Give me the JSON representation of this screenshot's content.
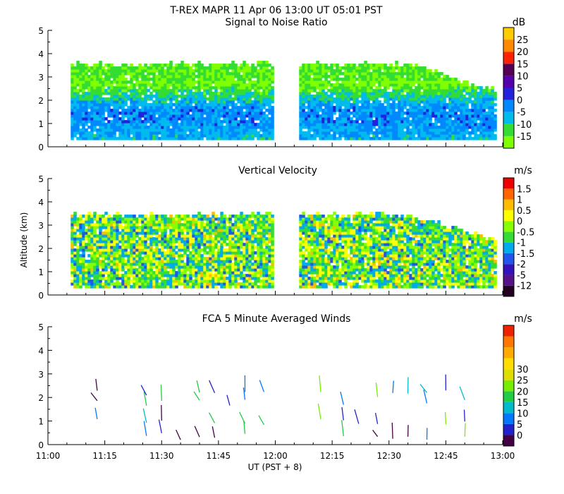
{
  "figure": {
    "title": "T-REX   MAPR 11 Apr 06   13:00 UT   05:01   PST",
    "xlabel": "UT  (PST + 8)",
    "ylabel": "Altitude (km)"
  },
  "chart_data": [
    {
      "type": "heatmap",
      "title": "Signal to Noise Ratio",
      "unit": "dB",
      "ylim": [
        0,
        5
      ],
      "yticks": [
        "0",
        "1",
        "2",
        "3",
        "4",
        "5"
      ],
      "x_ticks": [
        "11:00",
        "11:15",
        "11:30",
        "11:45",
        "12:00",
        "12:15",
        "12:30",
        "12:45",
        "13:00"
      ],
      "colorbar": {
        "labels": [
          "-15",
          "-10",
          "-5",
          "0",
          "5",
          "10",
          "15",
          "20",
          "25"
        ],
        "colors": [
          "#80ff00",
          "#33dd33",
          "#00bbee",
          "#0088ff",
          "#2222dd",
          "#5500aa",
          "#550055",
          "#ff2200",
          "#ff8800",
          "#ffcc00"
        ]
      },
      "data_extent": {
        "altitude_km": [
          0.3,
          3.5
        ],
        "gap_ut": [
          "11:59",
          "12:06"
        ]
      }
    },
    {
      "type": "heatmap",
      "title": "Vertical Velocity",
      "unit": "m/s",
      "ylim": [
        0,
        5
      ],
      "yticks": [
        "0",
        "1",
        "2",
        "3",
        "4",
        "5"
      ],
      "x_ticks": [
        "11:00",
        "11:15",
        "11:30",
        "11:45",
        "12:00",
        "12:15",
        "12:30",
        "12:45",
        "13:00"
      ],
      "colorbar": {
        "labels": [
          "-12",
          "-5",
          "-2",
          "-1.5",
          "-1",
          "-0.5",
          "0",
          "0.5",
          "1",
          "1.5"
        ],
        "colors": [
          "#220022",
          "#551188",
          "#3311bb",
          "#2255ee",
          "#00aaee",
          "#33dd33",
          "#88ff00",
          "#ffff00",
          "#ffbb00",
          "#ff6600",
          "#ee0000"
        ]
      },
      "data_extent": {
        "altitude_km": [
          0.3,
          3.4
        ],
        "gap_ut": [
          "11:59",
          "12:06"
        ]
      }
    },
    {
      "type": "scatter",
      "title": "FCA 5 Minute Averaged Winds",
      "unit": "m/s",
      "ylim": [
        0,
        5
      ],
      "yticks": [
        "0",
        "1",
        "2",
        "3",
        "4",
        "5"
      ],
      "x_ticks": [
        "11:00",
        "11:15",
        "11:30",
        "11:45",
        "12:00",
        "12:15",
        "12:30",
        "12:45",
        "13:00"
      ],
      "colorbar": {
        "labels": [
          "0",
          "5",
          "10",
          "15",
          "20",
          "25",
          "30"
        ],
        "colors": [
          "#440044",
          "#2222cc",
          "#0077ff",
          "#00bbcc",
          "#22cc44",
          "#77ee00",
          "#dddd00",
          "#ffdd00",
          "#ffaa00",
          "#ff7700",
          "#ee2200"
        ]
      },
      "wind_times_min": [
        13,
        26,
        30,
        35,
        40,
        44,
        48,
        52,
        57,
        72,
        78,
        82,
        87,
        91,
        95,
        100,
        105,
        110
      ],
      "wind_heights_km": [
        0.2,
        0.8,
        1.6,
        2.0
      ]
    }
  ]
}
